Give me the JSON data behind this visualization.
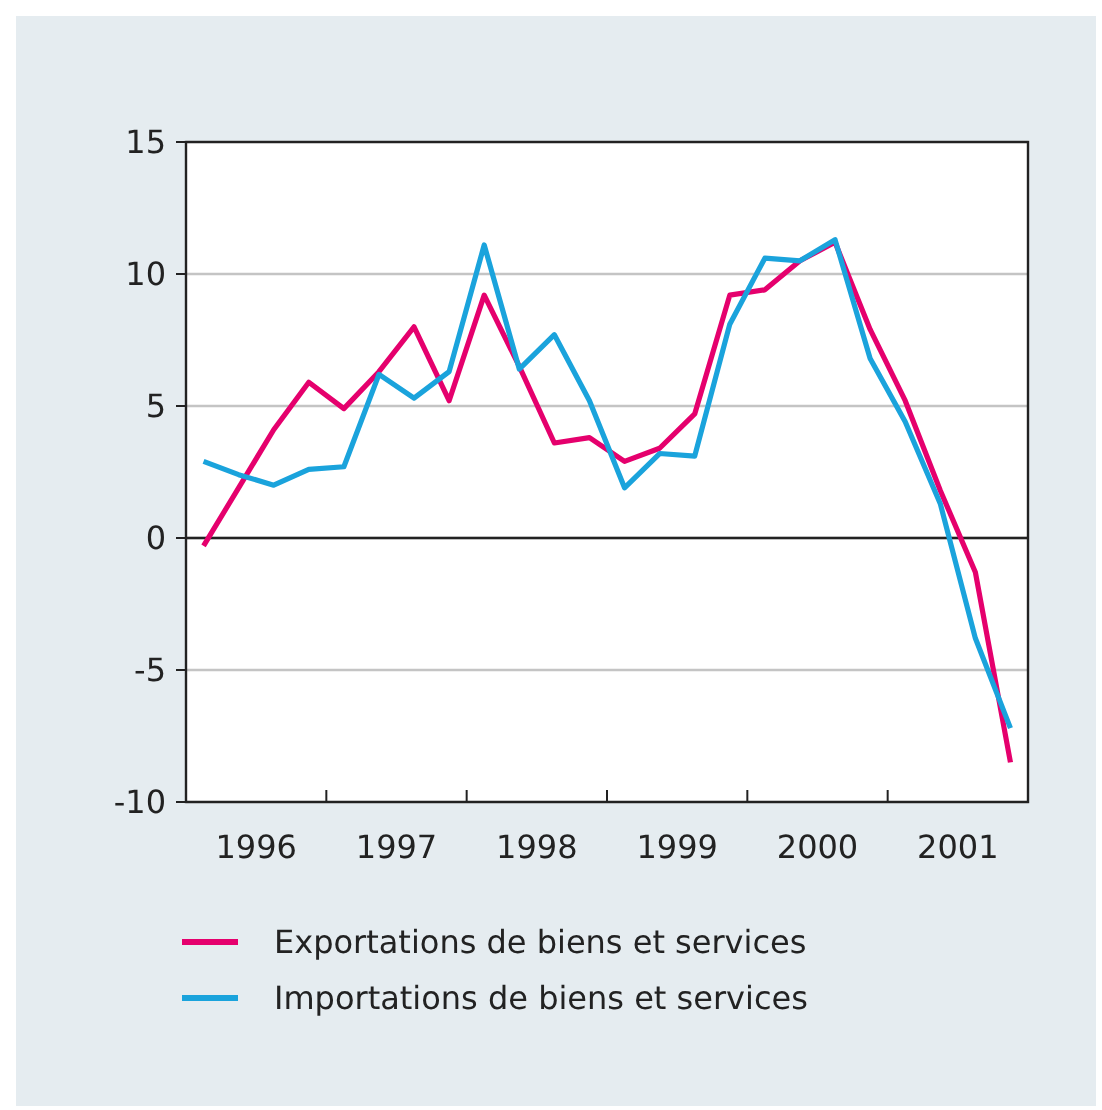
{
  "chart_data": {
    "type": "line",
    "x": [
      1996.125,
      1996.375,
      1996.625,
      1996.875,
      1997.125,
      1997.375,
      1997.625,
      1997.875,
      1998.125,
      1998.375,
      1998.625,
      1998.875,
      1999.125,
      1999.375,
      1999.625,
      1999.875,
      2000.125,
      2000.375,
      2000.625,
      2000.875,
      2001.125,
      2001.375,
      2001.625,
      2001.875
    ],
    "series": [
      {
        "name": "Exportations de biens et services",
        "color": "#e5006d",
        "values": [
          -0.3,
          1.9,
          4.1,
          5.9,
          4.9,
          6.3,
          8.0,
          5.2,
          9.2,
          6.5,
          3.6,
          3.8,
          2.9,
          3.4,
          4.7,
          9.2,
          9.4,
          10.5,
          11.2,
          7.9,
          5.2,
          1.8,
          -1.3,
          -8.5
        ]
      },
      {
        "name": "Importations de biens et services",
        "color": "#1aa3dc",
        "values": [
          2.9,
          2.4,
          2.0,
          2.6,
          2.7,
          6.2,
          5.3,
          6.3,
          11.1,
          6.4,
          7.7,
          5.2,
          1.9,
          3.2,
          3.1,
          8.1,
          10.6,
          10.5,
          11.3,
          6.8,
          4.4,
          1.3,
          -3.8,
          -7.2
        ]
      }
    ],
    "xlim": [
      1996,
      2002
    ],
    "xticks": [
      {
        "value": 1996.5,
        "label": "1996"
      },
      {
        "value": 1997,
        "label": null
      },
      {
        "value": 1997.5,
        "label": "1997"
      },
      {
        "value": 1998,
        "label": null
      },
      {
        "value": 1998.5,
        "label": "1998"
      },
      {
        "value": 1999,
        "label": null
      },
      {
        "value": 1999.5,
        "label": "1999"
      },
      {
        "value": 2000,
        "label": null
      },
      {
        "value": 2000.5,
        "label": "2000"
      },
      {
        "value": 2001,
        "label": null
      },
      {
        "value": 2001.5,
        "label": "2001"
      }
    ],
    "ylim": [
      -10,
      15
    ],
    "yticks": [
      -10,
      -5,
      0,
      5,
      10,
      15
    ],
    "grid": "y",
    "legend": "bottom",
    "marker": "none",
    "line_style": "solid",
    "ref_lines": [
      {
        "axis": "y",
        "value": 0,
        "color": "#222222"
      }
    ]
  }
}
